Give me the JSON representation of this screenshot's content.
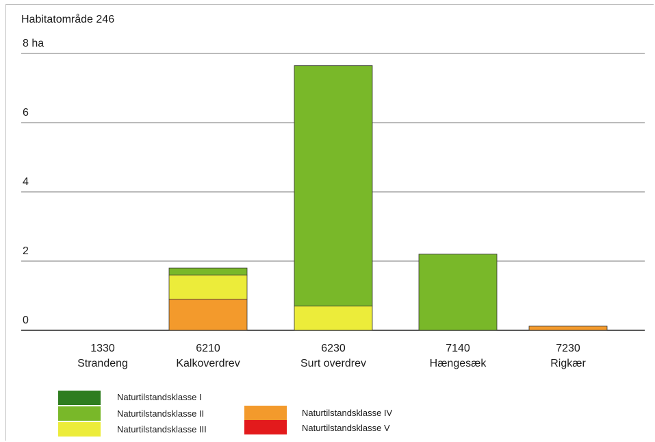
{
  "chart_data": {
    "type": "bar",
    "stacked": true,
    "title": "Habitatområde 246",
    "y_tick_labels": [
      "0",
      "2",
      "4",
      "6",
      "8 ha"
    ],
    "ylim": [
      0,
      8
    ],
    "grid": true,
    "categories": [
      {
        "code": "1330",
        "name": "Strandeng"
      },
      {
        "code": "6210",
        "name": "Kalkoverdrev"
      },
      {
        "code": "6230",
        "name": "Surt overdrev"
      },
      {
        "code": "7140",
        "name": "Hængesæk"
      },
      {
        "code": "7230",
        "name": "Rigkær"
      }
    ],
    "series": [
      {
        "name": "Naturtilstandsklasse V",
        "color": "#e31a1c",
        "values": [
          0,
          0,
          0,
          0,
          0
        ]
      },
      {
        "name": "Naturtilstandsklasse IV",
        "color": "#f39a2c",
        "values": [
          0,
          0.9,
          0,
          0,
          0.12
        ]
      },
      {
        "name": "Naturtilstandsklasse III",
        "color": "#ecec3a",
        "values": [
          0,
          0.7,
          0.7,
          0,
          0
        ]
      },
      {
        "name": "Naturtilstandsklasse II",
        "color": "#79b829",
        "values": [
          0,
          0.2,
          6.95,
          2.2,
          0
        ]
      },
      {
        "name": "Naturtilstandsklasse I",
        "color": "#2e7d1f",
        "values": [
          0,
          0,
          0,
          0,
          0
        ]
      }
    ],
    "legend": [
      {
        "name": "Naturtilstandsklasse I",
        "color": "#2e7d1f"
      },
      {
        "name": "Naturtilstandsklasse II",
        "color": "#79b829"
      },
      {
        "name": "Naturtilstandsklasse III",
        "color": "#ecec3a"
      },
      {
        "name": "Naturtilstandsklasse IV",
        "color": "#f39a2c"
      },
      {
        "name": "Naturtilstandsklasse V",
        "color": "#e31a1c"
      }
    ],
    "legend_position": "bottom-left"
  }
}
